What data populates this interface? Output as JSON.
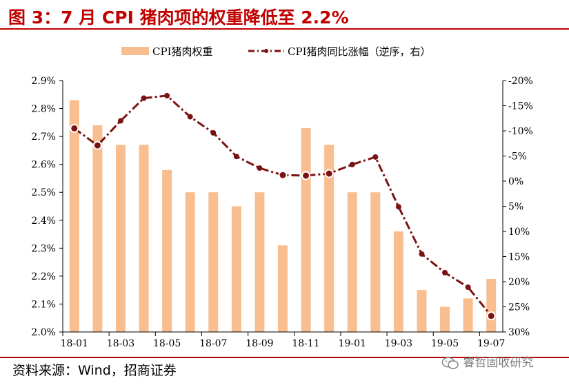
{
  "header": {
    "title": "图 3：7 月 CPI 猪肉项的权重降低至 2.2%"
  },
  "footer": {
    "source": "资料来源：Wind，招商证券",
    "watermark": "睿哲固收研究"
  },
  "colors": {
    "title": "#c00000",
    "bar": "#f9be8f",
    "line": "#7b1212"
  },
  "chart_data": {
    "type": "bar",
    "categories": [
      "18-01",
      "18-02",
      "18-03",
      "18-04",
      "18-05",
      "18-06",
      "18-07",
      "18-08",
      "18-09",
      "18-10",
      "18-11",
      "18-12",
      "19-01",
      "19-02",
      "19-03",
      "19-04",
      "19-05",
      "19-06",
      "19-07"
    ],
    "x_tick_labels": [
      "18-01",
      "18-03",
      "18-05",
      "18-07",
      "18-09",
      "18-11",
      "19-01",
      "19-03",
      "19-05",
      "19-07"
    ],
    "y_left": {
      "ylim": [
        2.0,
        2.9
      ],
      "tick_labels": [
        "2.0%",
        "2.1%",
        "2.2%",
        "2.3%",
        "2.4%",
        "2.5%",
        "2.6%",
        "2.7%",
        "2.8%",
        "2.9%"
      ]
    },
    "y_right": {
      "ylim": [
        -20,
        30
      ],
      "reversed": true,
      "tick_labels": [
        "-20%",
        "-15%",
        "-10%",
        "-5%",
        "0%",
        "5%",
        "10%",
        "15%",
        "20%",
        "25%",
        "30%"
      ]
    },
    "legend": {
      "placement": "top-center",
      "bar_label": "CPI猪肉权重",
      "line_label": "CPI猪肉同比涨幅（逆序，右）"
    },
    "series": [
      {
        "name": "CPI猪肉权重",
        "kind": "bar",
        "axis": "left",
        "unit": "%",
        "values": [
          2.83,
          2.74,
          2.67,
          2.67,
          2.58,
          2.5,
          2.5,
          2.45,
          2.5,
          2.31,
          2.73,
          2.67,
          2.5,
          2.5,
          2.36,
          2.15,
          2.09,
          2.12,
          2.19
        ]
      },
      {
        "name": "CPI猪肉同比涨幅（逆序，右）",
        "kind": "line",
        "axis": "right",
        "unit": "%",
        "values": [
          -10.5,
          -7.1,
          -12.0,
          -16.5,
          -17.0,
          -12.8,
          -9.6,
          -4.9,
          -2.6,
          -1.2,
          -1.1,
          -1.5,
          -3.3,
          -4.8,
          5.1,
          14.5,
          18.2,
          21.1,
          26.8
        ],
        "highlighted_points": [
          "18-01",
          "18-02",
          "18-10",
          "18-11",
          "18-12",
          "19-07"
        ]
      }
    ],
    "grid": false
  }
}
